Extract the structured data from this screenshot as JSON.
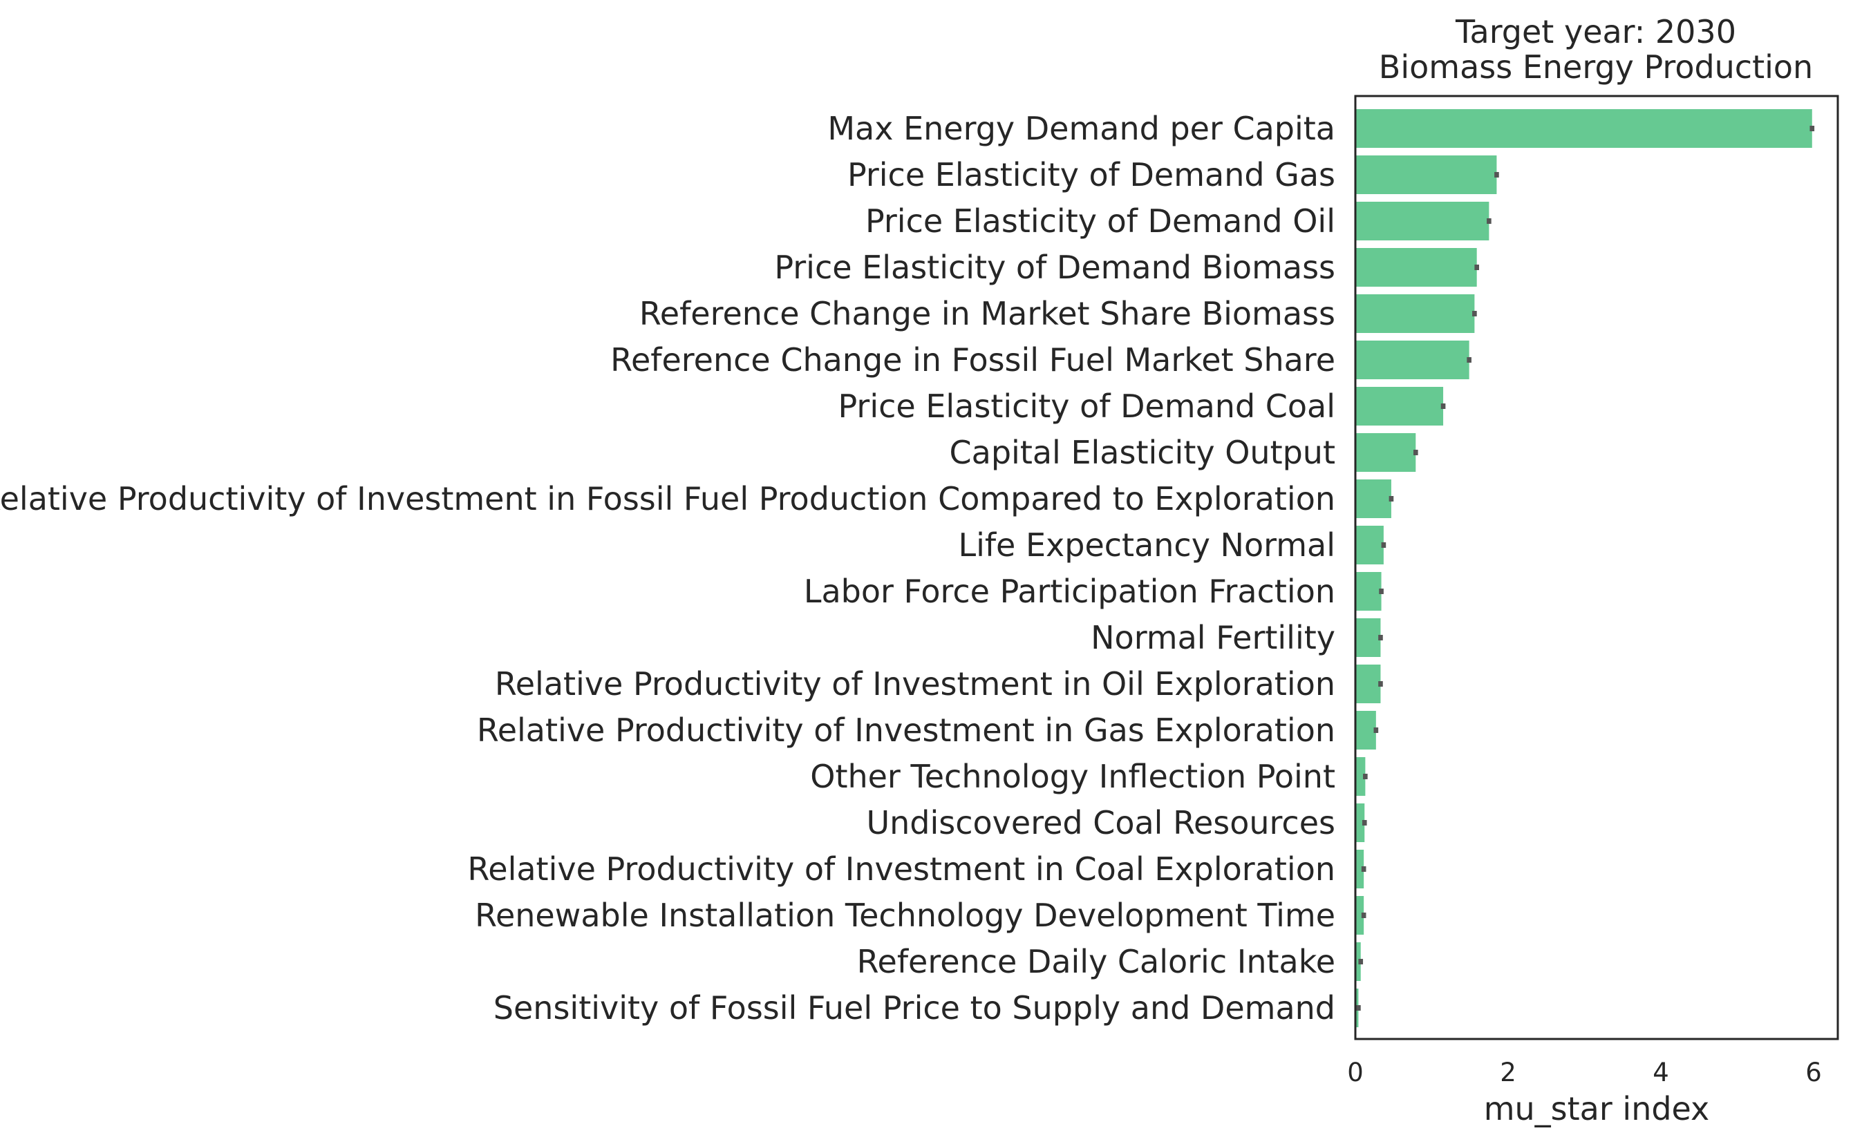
{
  "chart_data": {
    "type": "bar",
    "orientation": "horizontal",
    "title_line1": "Target year: 2030",
    "title_line2": "Biomass Energy Production",
    "xlabel": "mu_star index",
    "ylabel": "",
    "xlim": [
      0,
      6.3
    ],
    "xticks": [
      0,
      2,
      4,
      6
    ],
    "grid": false,
    "bar_color": "#66c992",
    "error_color": "#555555",
    "categories": [
      "Max Energy Demand per Capita",
      "Price Elasticity of Demand Gas",
      "Price Elasticity of Demand Oil",
      "Price Elasticity of Demand Biomass",
      "Reference Change in Market Share Biomass",
      "Reference Change in Fossil Fuel Market Share",
      "Price Elasticity of Demand Coal",
      "Capital Elasticity Output",
      "Relative Productivity of Investment in Fossil Fuel Production Compared to Exploration",
      "Life Expectancy Normal",
      "Labor Force Participation Fraction",
      "Normal Fertility",
      "Relative Productivity of Investment in Oil Exploration",
      "Relative Productivity of Investment in Gas Exploration",
      "Other Technology Inflection Point",
      "Undiscovered Coal Resources",
      "Relative Productivity of Investment in Coal Exploration",
      "Renewable Installation Technology Development Time",
      "Reference Daily Caloric Intake",
      "Sensitivity of Fossil Fuel Price to Supply and Demand"
    ],
    "values": [
      5.98,
      1.85,
      1.75,
      1.59,
      1.56,
      1.49,
      1.15,
      0.79,
      0.47,
      0.37,
      0.34,
      0.33,
      0.33,
      0.27,
      0.13,
      0.12,
      0.11,
      0.11,
      0.07,
      0.04
    ],
    "errors": [
      0.03,
      0.03,
      0.03,
      0.03,
      0.03,
      0.03,
      0.03,
      0.03,
      0.03,
      0.03,
      0.03,
      0.03,
      0.03,
      0.03,
      0.03,
      0.03,
      0.03,
      0.03,
      0.03,
      0.03
    ]
  }
}
